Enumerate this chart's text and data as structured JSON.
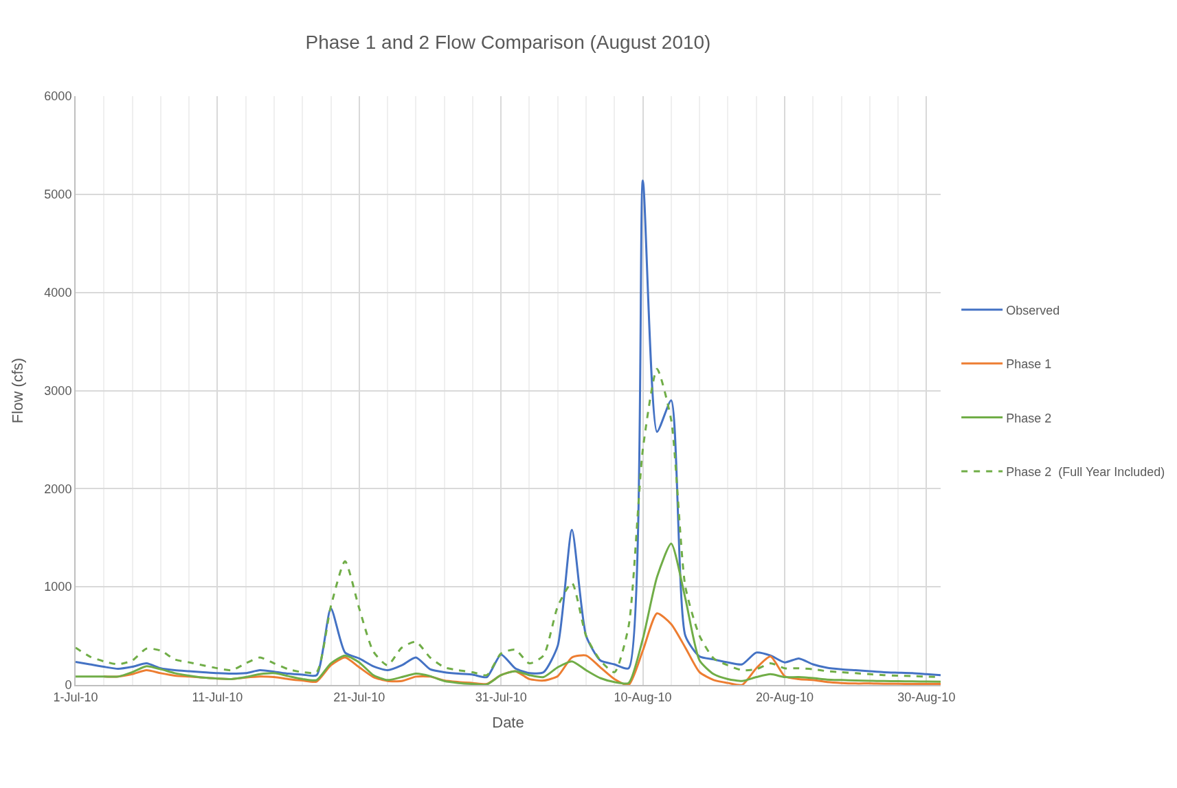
{
  "chart_data": {
    "type": "line",
    "title": "Phase 1 and 2 Flow Comparison (August 2010)",
    "xlabel": "Date",
    "ylabel": "Flow (cfs)",
    "x": [
      "2010-07-01",
      "2010-07-02",
      "2010-07-03",
      "2010-07-04",
      "2010-07-05",
      "2010-07-06",
      "2010-07-07",
      "2010-07-08",
      "2010-07-09",
      "2010-07-10",
      "2010-07-11",
      "2010-07-12",
      "2010-07-13",
      "2010-07-14",
      "2010-07-15",
      "2010-07-16",
      "2010-07-17",
      "2010-07-18",
      "2010-07-19",
      "2010-07-20",
      "2010-07-21",
      "2010-07-22",
      "2010-07-23",
      "2010-07-24",
      "2010-07-25",
      "2010-07-26",
      "2010-07-27",
      "2010-07-28",
      "2010-07-29",
      "2010-07-30",
      "2010-07-31",
      "2010-08-01",
      "2010-08-02",
      "2010-08-03",
      "2010-08-04",
      "2010-08-05",
      "2010-08-06",
      "2010-08-07",
      "2010-08-08",
      "2010-08-09",
      "2010-08-10",
      "2010-08-11",
      "2010-08-12",
      "2010-08-13",
      "2010-08-14",
      "2010-08-15",
      "2010-08-16",
      "2010-08-17",
      "2010-08-18",
      "2010-08-19",
      "2010-08-20",
      "2010-08-21",
      "2010-08-22",
      "2010-08-23",
      "2010-08-24",
      "2010-08-25",
      "2010-08-26",
      "2010-08-27",
      "2010-08-28",
      "2010-08-29",
      "2010-08-30",
      "2010-08-31"
    ],
    "series": [
      {
        "name": "Observed",
        "color": "#4472c4",
        "values": [
          235,
          210,
          185,
          165,
          185,
          220,
          170,
          150,
          140,
          130,
          120,
          115,
          120,
          150,
          135,
          115,
          105,
          100,
          780,
          330,
          270,
          190,
          150,
          200,
          280,
          160,
          130,
          115,
          105,
          80,
          310,
          170,
          120,
          130,
          400,
          1580,
          500,
          250,
          210,
          170,
          5140,
          2580,
          2900,
          500,
          290,
          260,
          230,
          210,
          330,
          300,
          230,
          270,
          210,
          175,
          160,
          150,
          140,
          130,
          125,
          120,
          110,
          100
        ]
      },
      {
        "name": "Phase 1",
        "color": "#ed7d31",
        "values": [
          null,
          null,
          85,
          85,
          110,
          150,
          120,
          95,
          85,
          75,
          65,
          60,
          75,
          85,
          80,
          60,
          45,
          35,
          200,
          280,
          180,
          80,
          40,
          40,
          85,
          85,
          45,
          30,
          20,
          10,
          100,
          140,
          60,
          45,
          90,
          280,
          300,
          180,
          60,
          0,
          350,
          730,
          620,
          380,
          130,
          50,
          20,
          0,
          170,
          290,
          90,
          60,
          50,
          30,
          20,
          15,
          15,
          12,
          12,
          10,
          10,
          10
        ]
      },
      {
        "name": "Phase 2",
        "color": "#70ad47",
        "values": [
          85,
          85,
          85,
          85,
          130,
          190,
          160,
          120,
          95,
          75,
          65,
          60,
          80,
          110,
          120,
          90,
          60,
          50,
          220,
          300,
          230,
          100,
          50,
          80,
          115,
          90,
          40,
          20,
          10,
          5,
          100,
          140,
          100,
          80,
          180,
          240,
          150,
          70,
          30,
          20,
          470,
          1100,
          1440,
          880,
          250,
          110,
          60,
          40,
          80,
          110,
          80,
          80,
          70,
          55,
          50,
          45,
          42,
          40,
          38,
          36,
          35,
          33
        ]
      },
      {
        "name": "Phase 2  (Full Year Included)",
        "color": "#70ad47",
        "line_style": "dashed",
        "values": [
          380,
          290,
          240,
          210,
          250,
          370,
          350,
          260,
          230,
          200,
          170,
          150,
          220,
          280,
          220,
          160,
          130,
          130,
          800,
          1260,
          780,
          340,
          200,
          380,
          440,
          280,
          180,
          150,
          130,
          100,
          320,
          360,
          220,
          300,
          800,
          1040,
          500,
          250,
          130,
          600,
          2400,
          3220,
          2700,
          1000,
          500,
          270,
          200,
          150,
          160,
          220,
          170,
          170,
          160,
          140,
          130,
          120,
          110,
          100,
          95,
          90,
          85,
          80
        ]
      }
    ],
    "xlim": [
      "2010-07-01",
      "2010-08-31"
    ],
    "xticks": [
      {
        "value": "2010-07-01",
        "label": "1-Jul-10"
      },
      {
        "value": "2010-07-11",
        "label": "11-Jul-10"
      },
      {
        "value": "2010-07-21",
        "label": "21-Jul-10"
      },
      {
        "value": "2010-07-31",
        "label": "31-Jul-10"
      },
      {
        "value": "2010-08-10",
        "label": "10-Aug-10"
      },
      {
        "value": "2010-08-20",
        "label": "20-Aug-10"
      },
      {
        "value": "2010-08-30",
        "label": "30-Aug-10"
      }
    ],
    "ylim": [
      0,
      6000
    ],
    "yticks": [
      0,
      1000,
      2000,
      3000,
      4000,
      5000,
      6000
    ],
    "grid": true,
    "legend": "right",
    "marker": "none",
    "line_style": "solid"
  }
}
